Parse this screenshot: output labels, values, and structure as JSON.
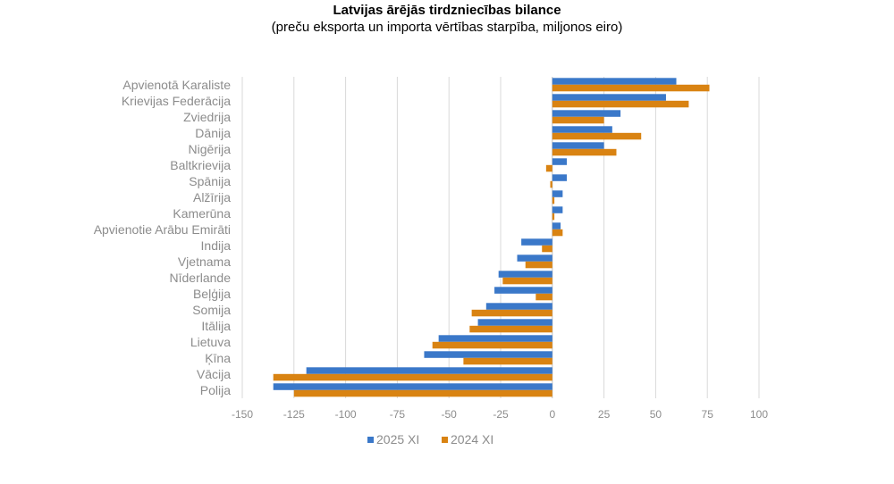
{
  "chart_data": {
    "type": "bar",
    "orientation": "horizontal",
    "title": "Latvijas ārējās tirdzniecības bilance",
    "subtitle": "(preču eksporta un importa vērtības starpība, miljonos eiro)",
    "xlabel": "",
    "ylabel": "",
    "xlim": [
      -150,
      100
    ],
    "x_ticks": [
      -150,
      -125,
      -100,
      -75,
      -50,
      -25,
      0,
      25,
      50,
      75,
      100
    ],
    "grid": "vertical",
    "legend_position": "bottom",
    "categories": [
      "Apvienotā Karaliste",
      "Krievijas Federācija",
      "Zviedrija",
      "Dānija",
      "Nigērija",
      "Baltkrievija",
      "Spānija",
      "Alžīrija",
      "Kamerūna",
      "Apvienotie Arābu Emirāti",
      "Indija",
      "Vjetnama",
      "Nīderlande",
      "Beļģija",
      "Somija",
      "Itālija",
      "Lietuva",
      "Ķīna",
      "Vācija",
      "Polija"
    ],
    "series": [
      {
        "name": "2025 XI",
        "color": "#3a78c9",
        "values": [
          60,
          55,
          33,
          29,
          25,
          7,
          7,
          5,
          5,
          4,
          -15,
          -17,
          -26,
          -28,
          -32,
          -36,
          -55,
          -62,
          -119,
          -135
        ]
      },
      {
        "name": "2024 XI",
        "color": "#d98312",
        "values": [
          76,
          66,
          25,
          43,
          31,
          -3,
          -1,
          1,
          1,
          5,
          -5,
          -13,
          -24,
          -8,
          -39,
          -40,
          -58,
          -43,
          -135,
          -125
        ]
      }
    ]
  },
  "colors": {
    "grid": "#d9d9d9",
    "axis_text": "#8c8c8c"
  }
}
